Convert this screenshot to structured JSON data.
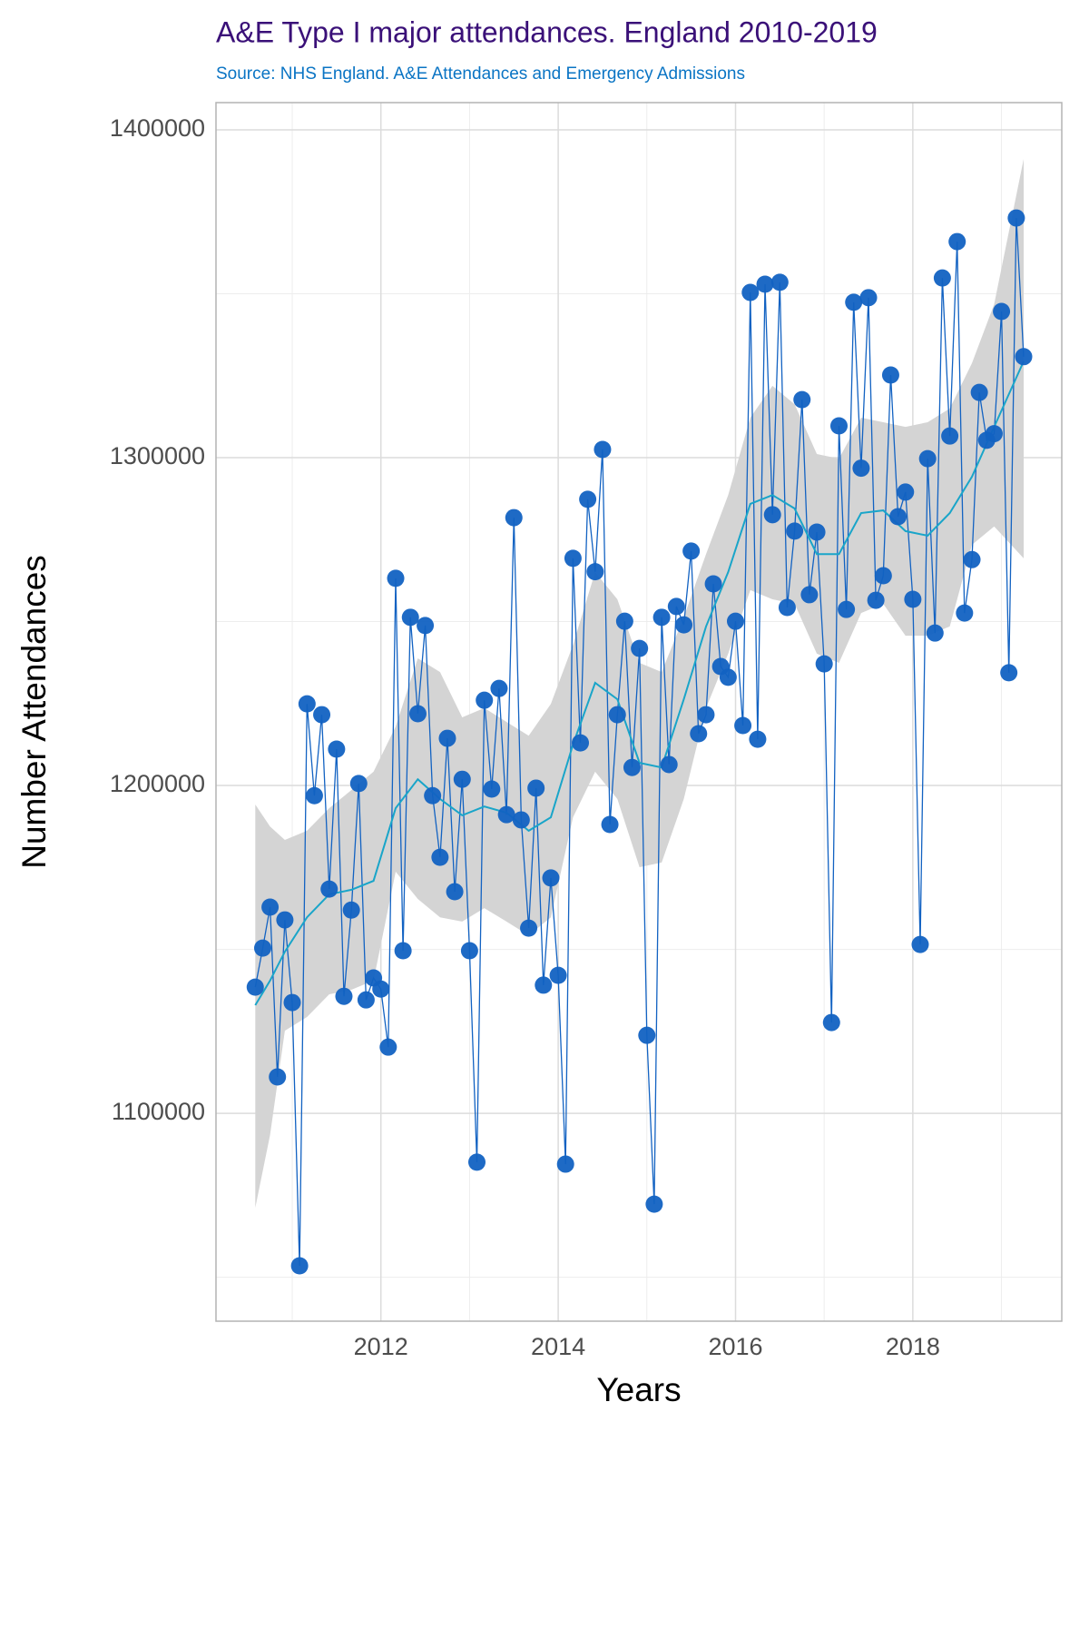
{
  "chart_data": {
    "type": "line",
    "title": "A&E Type I major attendances. England 2010-2019",
    "subtitle": "Source: NHS England. A&E Attendances and Emergency Admissions",
    "x_label": "Years",
    "y_label": "Number Attendances",
    "grid": true,
    "xlim": [
      2010.14,
      2019.68
    ],
    "ylim": [
      1036600,
      1408300
    ],
    "xticks": [
      2012,
      2014,
      2016,
      2018
    ],
    "xminor": [
      2011,
      2013,
      2015,
      2017,
      2019
    ],
    "yticks": [
      1100000,
      1200000,
      1300000,
      1400000
    ],
    "yminor": [
      1050000,
      1150000,
      1250000,
      1350000
    ],
    "x": [
      2010.583,
      2010.667,
      2010.75,
      2010.833,
      2010.917,
      2011,
      2011.083,
      2011.167,
      2011.25,
      2011.333,
      2011.417,
      2011.5,
      2011.583,
      2011.667,
      2011.75,
      2011.833,
      2011.917,
      2012,
      2012.083,
      2012.167,
      2012.25,
      2012.333,
      2012.417,
      2012.5,
      2012.583,
      2012.667,
      2012.75,
      2012.833,
      2012.917,
      2013,
      2013.083,
      2013.167,
      2013.25,
      2013.333,
      2013.417,
      2013.5,
      2013.583,
      2013.667,
      2013.75,
      2013.833,
      2013.917,
      2014,
      2014.083,
      2014.167,
      2014.25,
      2014.333,
      2014.417,
      2014.5,
      2014.583,
      2014.667,
      2014.75,
      2014.833,
      2014.917,
      2015,
      2015.083,
      2015.167,
      2015.25,
      2015.333,
      2015.417,
      2015.5,
      2015.583,
      2015.667,
      2015.75,
      2015.833,
      2015.917,
      2016,
      2016.083,
      2016.167,
      2016.25,
      2016.333,
      2016.417,
      2016.5,
      2016.583,
      2016.667,
      2016.75,
      2016.833,
      2016.917,
      2017,
      2017.083,
      2017.167,
      2017.25,
      2017.333,
      2017.417,
      2017.5,
      2017.583,
      2017.667,
      2017.75,
      2017.833,
      2017.917,
      2018,
      2018.083,
      2018.167,
      2018.25,
      2018.333,
      2018.417,
      2018.5,
      2018.583,
      2018.667,
      2018.75,
      2018.833,
      2018.917,
      2019,
      2019.083,
      2019.167,
      2019.25
    ],
    "series": [
      {
        "color": "#1262c2",
        "values": [
          1138500,
          1150400,
          1162900,
          1111100,
          1159000,
          1133800,
          1053500,
          1224900,
          1196900,
          1221600,
          1168400,
          1211100,
          1135700,
          1162000,
          1200600,
          1134600,
          1141300,
          1137900,
          1120200,
          1263200,
          1149600,
          1251300,
          1221900,
          1248800,
          1196900,
          1178100,
          1214400,
          1167600,
          1201900,
          1149600,
          1085100,
          1226000,
          1198900,
          1229600,
          1191100,
          1281700,
          1189500,
          1156500,
          1199200,
          1139100,
          1171800,
          1142100,
          1084500,
          1269300,
          1213000,
          1287300,
          1265200,
          1302500,
          1188100,
          1221600,
          1250100,
          1205500,
          1241800,
          1123800,
          1072300,
          1251300,
          1206400,
          1254600,
          1249000,
          1271500,
          1215800,
          1221600,
          1261500,
          1236300,
          1233000,
          1250100,
          1218300,
          1350400,
          1214100,
          1352900,
          1282600,
          1353500,
          1254300,
          1277600,
          1317700,
          1258200,
          1277300,
          1237100,
          1127700,
          1309700,
          1253700,
          1347400,
          1296800,
          1348800,
          1256500,
          1264000,
          1325200,
          1282000,
          1289500,
          1256800,
          1151500,
          1299700,
          1246500,
          1354800,
          1306600,
          1365900,
          1252600,
          1268900,
          1319900,
          1305300,
          1307300,
          1344600,
          1234400,
          1373100,
          1330800
        ]
      }
    ],
    "smooth": {
      "color": "#19a5c9",
      "fill": "#d4d4d4",
      "x": [
        2010.583,
        2010.75,
        2010.917,
        2011.167,
        2011.417,
        2011.667,
        2011.917,
        2012.167,
        2012.417,
        2012.667,
        2012.917,
        2013.167,
        2013.417,
        2013.667,
        2013.917,
        2014.167,
        2014.417,
        2014.667,
        2014.917,
        2015.167,
        2015.417,
        2015.667,
        2015.917,
        2016.167,
        2016.417,
        2016.667,
        2016.917,
        2017.167,
        2017.417,
        2017.667,
        2017.917,
        2018.167,
        2018.417,
        2018.667,
        2018.917,
        2019.25
      ],
      "values": [
        1133000,
        1140500,
        1149300,
        1159800,
        1166800,
        1168200,
        1170900,
        1193100,
        1201900,
        1195900,
        1190900,
        1193600,
        1191700,
        1186200,
        1190300,
        1212500,
        1231300,
        1226300,
        1206900,
        1205500,
        1226300,
        1248500,
        1265100,
        1285900,
        1288600,
        1284500,
        1270600,
        1270600,
        1283100,
        1283900,
        1277600,
        1276200,
        1283100,
        1294200,
        1309400,
        1329400
      ],
      "lower": [
        1071200,
        1093400,
        1125200,
        1129400,
        1136300,
        1137700,
        1140500,
        1173700,
        1165400,
        1159800,
        1158500,
        1162600,
        1158500,
        1154300,
        1159800,
        1190300,
        1204200,
        1195900,
        1175100,
        1176500,
        1195900,
        1223600,
        1240200,
        1259600,
        1256800,
        1255400,
        1240200,
        1237400,
        1252600,
        1255400,
        1245700,
        1245700,
        1248500,
        1273400,
        1279000,
        1269300
      ],
      "upper": [
        1194200,
        1187500,
        1183400,
        1186200,
        1193100,
        1198600,
        1204200,
        1218000,
        1238800,
        1234600,
        1220800,
        1223600,
        1219400,
        1215200,
        1224900,
        1242900,
        1265100,
        1256800,
        1237400,
        1234600,
        1251300,
        1270600,
        1288600,
        1312200,
        1321900,
        1316300,
        1301100,
        1299700,
        1312200,
        1310800,
        1309400,
        1310800,
        1315000,
        1328800,
        1346800,
        1391100
      ]
    }
  }
}
